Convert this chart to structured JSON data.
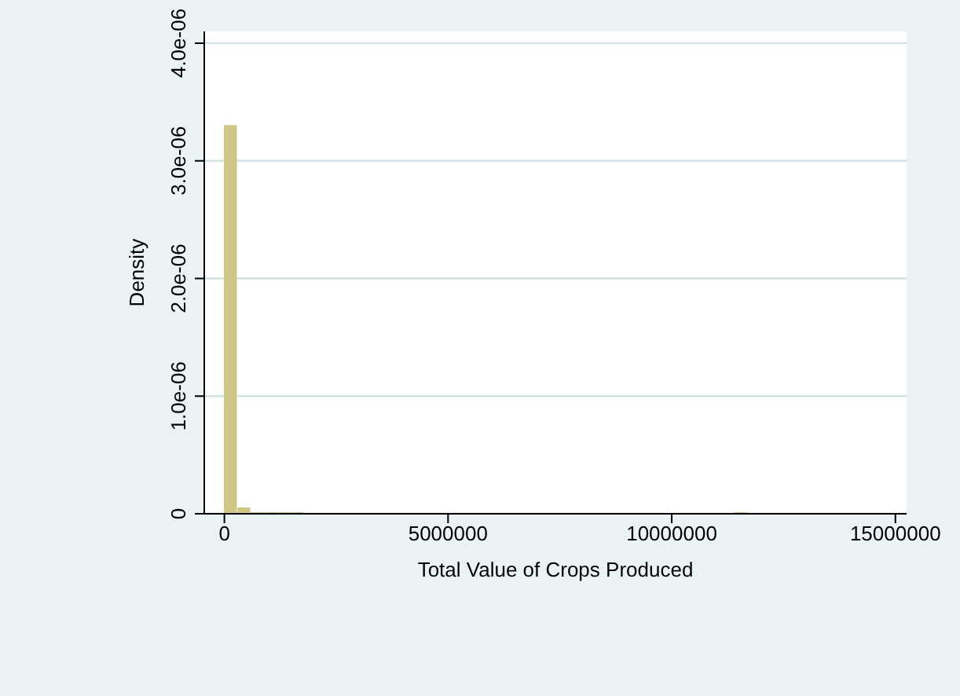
{
  "chart_data": {
    "type": "histogram",
    "xlabel": "Total Value of Crops Produced",
    "ylabel": "Density",
    "color": "#cfc585",
    "bins": [
      0,
      300000,
      600000,
      900000,
      1200000,
      1500000,
      1800000,
      2100000,
      2400000,
      2700000,
      3000000,
      3300000,
      3600000,
      3900000,
      4200000,
      4500000,
      4800000,
      5100000,
      5400000,
      5700000,
      6000000,
      6300000,
      6600000,
      6900000,
      7200000,
      7500000,
      7800000,
      8100000,
      8400000,
      8700000,
      9000000,
      9300000,
      9600000,
      9900000,
      10200000,
      10500000,
      10800000,
      11100000,
      11400000,
      11700000
    ],
    "values": [
      3.3e-06,
      5e-08,
      1e-08,
      1e-08,
      1e-08,
      1e-08,
      0,
      0,
      0,
      0,
      0,
      0,
      0,
      0,
      0,
      0,
      0,
      0,
      0,
      0,
      0,
      0,
      0,
      0,
      0,
      0,
      0,
      0,
      0,
      0,
      0,
      0,
      0,
      0,
      0,
      0,
      0,
      0,
      1e-08
    ],
    "xlim": [
      -450000,
      15250000
    ],
    "xticks": [
      0,
      5000000,
      10000000,
      15000000
    ],
    "ylim": [
      0,
      4.1e-06
    ],
    "yticks": [
      {
        "value": 0,
        "label": "0"
      },
      {
        "value": 1e-06,
        "label": "1.0e-06"
      },
      {
        "value": 2e-06,
        "label": "2.0e-06"
      },
      {
        "value": 3e-06,
        "label": "3.0e-06"
      },
      {
        "value": 4e-06,
        "label": "4.0e-06"
      }
    ],
    "grid": "y"
  }
}
